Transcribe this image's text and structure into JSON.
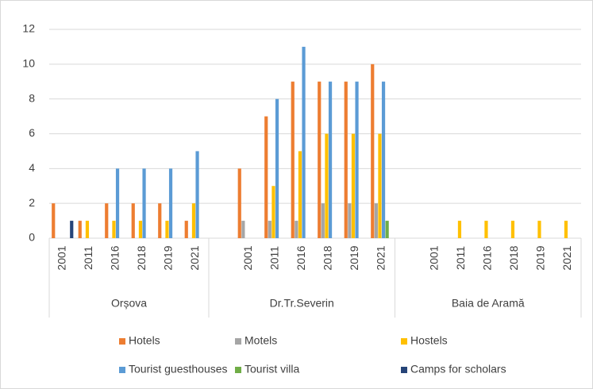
{
  "chart_data": {
    "type": "bar",
    "groups": [
      "Orșova",
      "Dr.Tr.Severin",
      "Baia de Aramă"
    ],
    "categories": [
      "2001",
      "2011",
      "2016",
      "2018",
      "2019",
      "2021",
      null,
      "2001",
      "2011",
      "2016",
      "2018",
      "2019",
      "2021",
      null,
      "2001",
      "2011",
      "2016",
      "2018",
      "2019",
      "2021"
    ],
    "series": [
      {
        "name": "Hotels",
        "color": "#ed7d31",
        "values": [
          2,
          1,
          2,
          2,
          2,
          1,
          null,
          4,
          7,
          9,
          9,
          9,
          10,
          null,
          0,
          0,
          0,
          0,
          0,
          0
        ]
      },
      {
        "name": "Motels",
        "color": "#a5a5a5",
        "values": [
          0,
          0,
          0,
          0,
          0,
          0,
          null,
          1,
          1,
          1,
          2,
          2,
          2,
          null,
          0,
          0,
          0,
          0,
          0,
          0
        ]
      },
      {
        "name": "Hostels",
        "color": "#ffc000",
        "values": [
          0,
          1,
          1,
          1,
          1,
          2,
          null,
          0,
          3,
          5,
          6,
          6,
          6,
          null,
          0,
          1,
          1,
          1,
          1,
          1
        ]
      },
      {
        "name": "Tourist guesthouses",
        "color": "#5b9bd5",
        "values": [
          0,
          0,
          4,
          4,
          4,
          5,
          null,
          0,
          8,
          11,
          9,
          9,
          9,
          null,
          0,
          0,
          0,
          0,
          0,
          0
        ]
      },
      {
        "name": "Tourist villa",
        "color": "#70ad47",
        "values": [
          0,
          0,
          0,
          0,
          0,
          0,
          null,
          0,
          0,
          0,
          0,
          0,
          1,
          null,
          0,
          0,
          0,
          0,
          0,
          0
        ]
      },
      {
        "name": "Camps for scholars",
        "color": "#264478",
        "values": [
          1,
          0,
          0,
          0,
          0,
          0,
          null,
          0,
          0,
          0,
          0,
          0,
          0,
          null,
          0,
          0,
          0,
          0,
          0,
          0
        ]
      }
    ],
    "ylim": [
      0,
      12
    ],
    "yticks": [
      0,
      2,
      4,
      6,
      8,
      10,
      12
    ],
    "grid": true
  }
}
